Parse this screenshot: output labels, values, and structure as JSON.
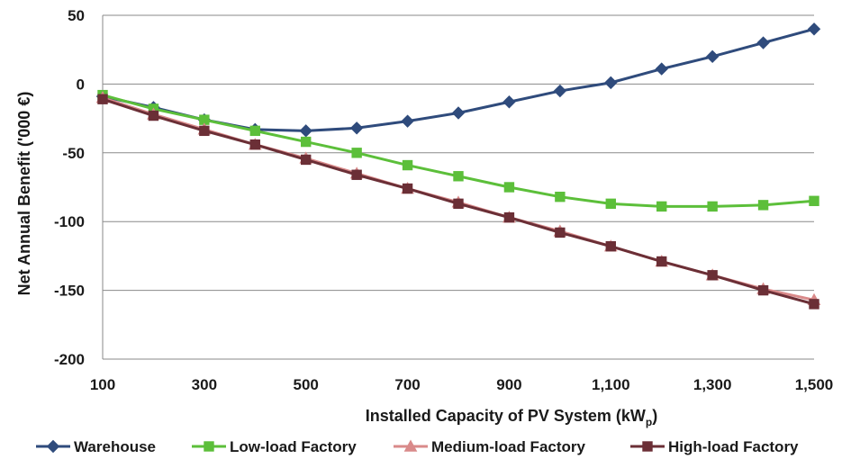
{
  "chart_data": {
    "type": "line",
    "xlabel": "Installed Capacity of PV System (kW",
    "xlabel_sub": "p",
    "xlabel_end": ")",
    "ylabel": "Net Annual Benefit ('000 €)",
    "xlim": [
      100,
      1500
    ],
    "ylim": [
      -200,
      50
    ],
    "x_ticks": [
      100,
      300,
      500,
      700,
      900,
      1100,
      1300,
      1500
    ],
    "x_tick_labels": [
      "100",
      "300",
      "500",
      "700",
      "900",
      "1,100",
      "1,300",
      "1,500"
    ],
    "y_ticks": [
      50,
      0,
      -50,
      -100,
      -150,
      -200
    ],
    "y_tick_labels": [
      "50",
      "0",
      "-50",
      "-100",
      "-150",
      "-200"
    ],
    "grid": true,
    "legend_position": "bottom",
    "x": [
      100,
      200,
      300,
      400,
      500,
      600,
      700,
      800,
      900,
      1000,
      1100,
      1200,
      1300,
      1400,
      1500
    ],
    "series": [
      {
        "name": "Warehouse",
        "color": "#2f4b7c",
        "marker": "diamond",
        "values": [
          -9,
          -17,
          -26,
          -33,
          -34,
          -32,
          -27,
          -21,
          -13,
          -5,
          1,
          11,
          20,
          30,
          40
        ]
      },
      {
        "name": "Low-load Factory",
        "color": "#5cbf3a",
        "marker": "square",
        "values": [
          -8,
          -18,
          -26,
          -34,
          -42,
          -50,
          -59,
          -67,
          -75,
          -82,
          -87,
          -89,
          -89,
          -88,
          -85
        ]
      },
      {
        "name": "Medium-load Factory",
        "color": "#d98a8a",
        "marker": "triangle",
        "values": [
          -10,
          -22,
          -33,
          -44,
          -54,
          -65,
          -76,
          -86,
          -97,
          -107,
          -118,
          -129,
          -139,
          -149,
          -157
        ]
      },
      {
        "name": "High-load Factory",
        "color": "#6b2f36",
        "marker": "square",
        "values": [
          -11,
          -23,
          -34,
          -44,
          -55,
          -66,
          -76,
          -87,
          -97,
          -108,
          -118,
          -129,
          -139,
          -150,
          -160
        ]
      }
    ]
  }
}
